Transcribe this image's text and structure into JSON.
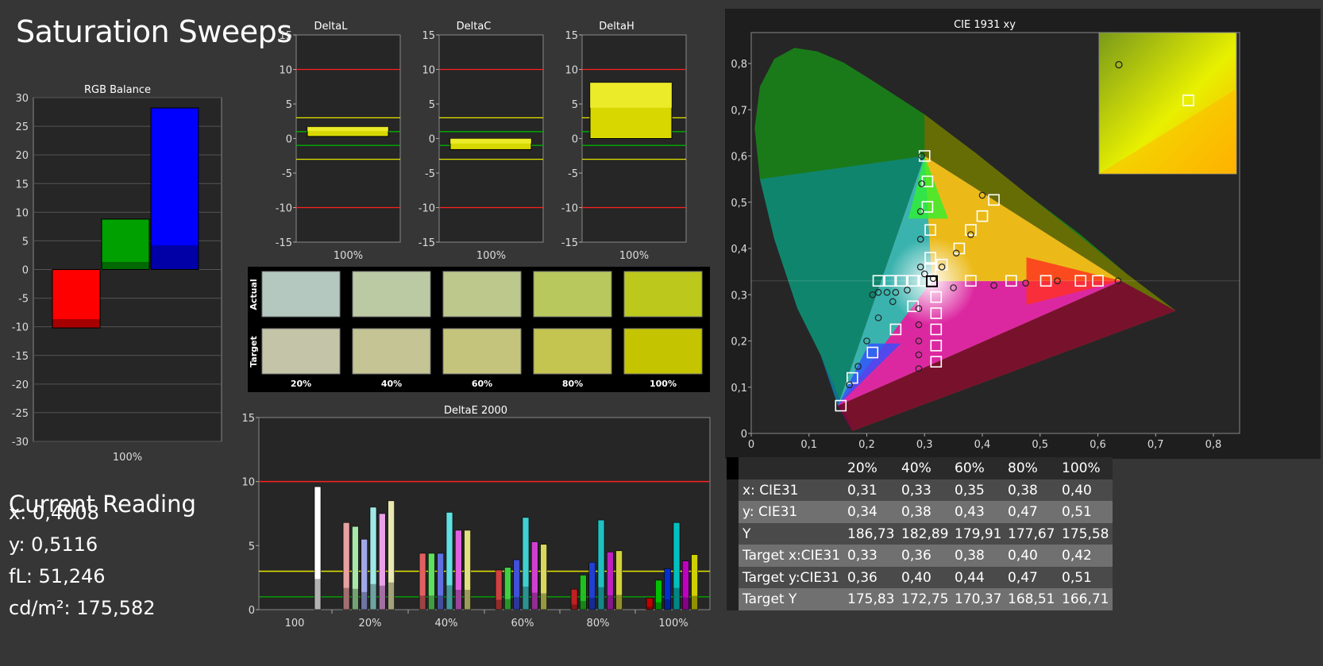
{
  "title": "Saturation Sweeps",
  "current_reading": {
    "heading": "Current Reading",
    "lines": [
      "x: 0,4008",
      "y: 0,5116",
      "fL: 51,246",
      "cd/m²: 175,582"
    ]
  },
  "colors": {
    "background": "#363636",
    "plot_bg": "#262626",
    "red_bar": "#ff0000",
    "green_bar": "#00a000",
    "blue_bar": "#0000ff",
    "yellow_bar": "#e8e800",
    "yellow_line": "#e6e600",
    "red_line": "#ff2020",
    "green_line": "#00b000"
  },
  "chart_data": [
    {
      "id": "rgb-balance",
      "type": "bar",
      "title": "RGB Balance",
      "categories": [
        "100%"
      ],
      "ylim": [
        -30,
        30
      ],
      "yticks": [
        "30",
        "25",
        "20",
        "15",
        "10",
        "5",
        "0",
        "-5",
        "-10",
        "-15",
        "-20",
        "-25",
        "-30"
      ],
      "series": [
        {
          "values": [
            -10.2
          ],
          "color": "#ff0000"
        },
        {
          "values": [
            8.8
          ],
          "color": "#00a000"
        },
        {
          "values": [
            28.2
          ],
          "color": "#0000ff"
        }
      ],
      "grid": true
    },
    {
      "id": "delta-l",
      "type": "bar",
      "title": "DeltaL",
      "categories": [
        "100%"
      ],
      "values": [
        1.0
      ],
      "range": [
        0.3,
        1.7
      ],
      "ylim": [
        -15,
        15
      ],
      "yticks": [
        "15",
        "10",
        "5",
        "0",
        "-5",
        "-10",
        "-15"
      ]
    },
    {
      "id": "delta-c",
      "type": "bar",
      "title": "DeltaC",
      "categories": [
        "100%"
      ],
      "values": [
        -0.8
      ],
      "range": [
        -1.6,
        0.0
      ],
      "ylim": [
        -15,
        15
      ],
      "yticks": [
        "15",
        "10",
        "5",
        "0",
        "-5",
        "-10",
        "-15"
      ]
    },
    {
      "id": "delta-h",
      "type": "bar",
      "title": "DeltaH",
      "categories": [
        "100%"
      ],
      "values": [
        8.1
      ],
      "range": [
        0.0,
        8.1
      ],
      "ylim": [
        -15,
        15
      ],
      "yticks": [
        "15",
        "10",
        "5",
        "0",
        "-5",
        "-10",
        "-15"
      ]
    },
    {
      "id": "swatches",
      "type": "table",
      "rows": [
        "Actual",
        "Target"
      ],
      "categories": [
        "20%",
        "40%",
        "60%",
        "80%",
        "100%"
      ],
      "actual_colors": [
        "#b4c8c0",
        "#bccaa4",
        "#bcc88c",
        "#b8c85c",
        "#bcc81c"
      ],
      "target_colors": [
        "#c4c4a8",
        "#c4c494",
        "#c4c47c",
        "#c4c450",
        "#c4c400"
      ]
    },
    {
      "id": "delta-e-2000",
      "type": "bar",
      "title": "DeltaE 2000",
      "categories": [
        "100",
        "20%",
        "40%",
        "60%",
        "80%",
        "100%"
      ],
      "ylim": [
        0,
        15
      ],
      "yticks": [
        "15",
        "10",
        "5",
        "0"
      ],
      "groups": [
        {
          "category": "100",
          "values": [
            9.6
          ],
          "colors": [
            "#ffffff"
          ]
        },
        {
          "category": "20%",
          "values": [
            6.8,
            6.5,
            5.5,
            8.0,
            7.5,
            8.5
          ],
          "colors": [
            "#e8a0a0",
            "#a8e8a8",
            "#a0a8e8",
            "#a0e8e8",
            "#e8a0e8",
            "#e8e8b0"
          ]
        },
        {
          "category": "40%",
          "values": [
            4.4,
            4.4,
            4.4,
            7.6,
            6.2,
            6.2
          ],
          "colors": [
            "#e06060",
            "#60e060",
            "#6070e0",
            "#60e0e0",
            "#e060e0",
            "#e0e080"
          ]
        },
        {
          "category": "60%",
          "values": [
            3.1,
            3.3,
            3.9,
            7.2,
            5.3,
            5.1
          ],
          "colors": [
            "#d04040",
            "#40d040",
            "#4050d8",
            "#40d0d0",
            "#d040d0",
            "#d8d860"
          ]
        },
        {
          "category": "80%",
          "values": [
            1.6,
            2.7,
            3.7,
            7.0,
            4.5,
            4.6
          ],
          "colors": [
            "#c02020",
            "#20c020",
            "#2040d0",
            "#20c0c0",
            "#c020c0",
            "#d0d040"
          ]
        },
        {
          "category": "100%",
          "values": [
            0.9,
            2.3,
            3.2,
            6.8,
            3.8,
            4.3
          ],
          "colors": [
            "#c00000",
            "#00c000",
            "#0030d0",
            "#00c0c0",
            "#c000c0",
            "#d0d000"
          ]
        }
      ],
      "thresholds": [
        3,
        10
      ]
    },
    {
      "id": "cie-1931",
      "type": "scatter",
      "title": "CIE 1931 xy",
      "xlim": [
        0,
        0.8
      ],
      "ylim": [
        0,
        0.8
      ],
      "xticks": [
        "0",
        "0,1",
        "0,2",
        "0,3",
        "0,4",
        "0,5",
        "0,6",
        "0,7",
        "0,8"
      ],
      "yticks": [
        "0",
        "0,1",
        "0,2",
        "0,3",
        "0,4",
        "0,5",
        "0,6",
        "0,7",
        "0,8"
      ],
      "gamut": [
        [
          0.64,
          0.33
        ],
        [
          0.3,
          0.6
        ],
        [
          0.15,
          0.06
        ]
      ],
      "white": [
        0.3127,
        0.329
      ],
      "targets": [
        [
          0.6,
          0.33
        ],
        [
          0.57,
          0.33
        ],
        [
          0.51,
          0.33
        ],
        [
          0.45,
          0.33
        ],
        [
          0.38,
          0.33
        ],
        [
          0.3,
          0.6
        ],
        [
          0.305,
          0.545
        ],
        [
          0.305,
          0.49
        ],
        [
          0.31,
          0.44
        ],
        [
          0.31,
          0.38
        ],
        [
          0.31,
          0.355
        ],
        [
          0.155,
          0.06
        ],
        [
          0.175,
          0.12
        ],
        [
          0.21,
          0.175
        ],
        [
          0.25,
          0.225
        ],
        [
          0.28,
          0.275
        ],
        [
          0.32,
          0.155
        ],
        [
          0.32,
          0.19
        ],
        [
          0.32,
          0.225
        ],
        [
          0.32,
          0.26
        ],
        [
          0.32,
          0.295
        ],
        [
          0.22,
          0.33
        ],
        [
          0.24,
          0.33
        ],
        [
          0.26,
          0.33
        ],
        [
          0.28,
          0.33
        ],
        [
          0.3,
          0.33
        ],
        [
          0.42,
          0.505
        ],
        [
          0.4,
          0.47
        ],
        [
          0.38,
          0.44
        ],
        [
          0.36,
          0.4
        ],
        [
          0.33,
          0.365
        ]
      ],
      "measured": [
        [
          0.635,
          0.33
        ],
        [
          0.53,
          0.33
        ],
        [
          0.475,
          0.325
        ],
        [
          0.42,
          0.32
        ],
        [
          0.35,
          0.315
        ],
        [
          0.295,
          0.6
        ],
        [
          0.295,
          0.54
        ],
        [
          0.293,
          0.48
        ],
        [
          0.293,
          0.42
        ],
        [
          0.293,
          0.36
        ],
        [
          0.3,
          0.345
        ],
        [
          0.17,
          0.105
        ],
        [
          0.185,
          0.145
        ],
        [
          0.2,
          0.2
        ],
        [
          0.22,
          0.25
        ],
        [
          0.245,
          0.285
        ],
        [
          0.29,
          0.14
        ],
        [
          0.29,
          0.17
        ],
        [
          0.29,
          0.2
        ],
        [
          0.29,
          0.235
        ],
        [
          0.29,
          0.27
        ],
        [
          0.21,
          0.3
        ],
        [
          0.22,
          0.305
        ],
        [
          0.235,
          0.305
        ],
        [
          0.25,
          0.305
        ],
        [
          0.27,
          0.31
        ],
        [
          0.4,
          0.515
        ],
        [
          0.38,
          0.43
        ],
        [
          0.355,
          0.39
        ],
        [
          0.33,
          0.36
        ],
        [
          0.315,
          0.335
        ]
      ],
      "inset": {
        "measured": [
          0.3,
          0.9
        ],
        "target": [
          0.65,
          0.68
        ]
      }
    },
    {
      "id": "readings-table",
      "type": "table",
      "columns": [
        "",
        "20%",
        "40%",
        "60%",
        "80%",
        "100%"
      ],
      "rows": [
        {
          "label": "x: CIE31",
          "values": [
            "0,31",
            "0,33",
            "0,35",
            "0,38",
            "0,40"
          ]
        },
        {
          "label": "y: CIE31",
          "values": [
            "0,34",
            "0,38",
            "0,43",
            "0,47",
            "0,51"
          ]
        },
        {
          "label": "Y",
          "values": [
            "186,73",
            "182,89",
            "179,91",
            "177,67",
            "175,58"
          ]
        },
        {
          "label": "Target x:CIE31",
          "values": [
            "0,33",
            "0,36",
            "0,38",
            "0,40",
            "0,42"
          ]
        },
        {
          "label": "Target y:CIE31",
          "values": [
            "0,36",
            "0,40",
            "0,44",
            "0,47",
            "0,51"
          ]
        },
        {
          "label": "Target Y",
          "values": [
            "175,83",
            "172,75",
            "170,37",
            "168,51",
            "166,71"
          ]
        }
      ]
    }
  ]
}
